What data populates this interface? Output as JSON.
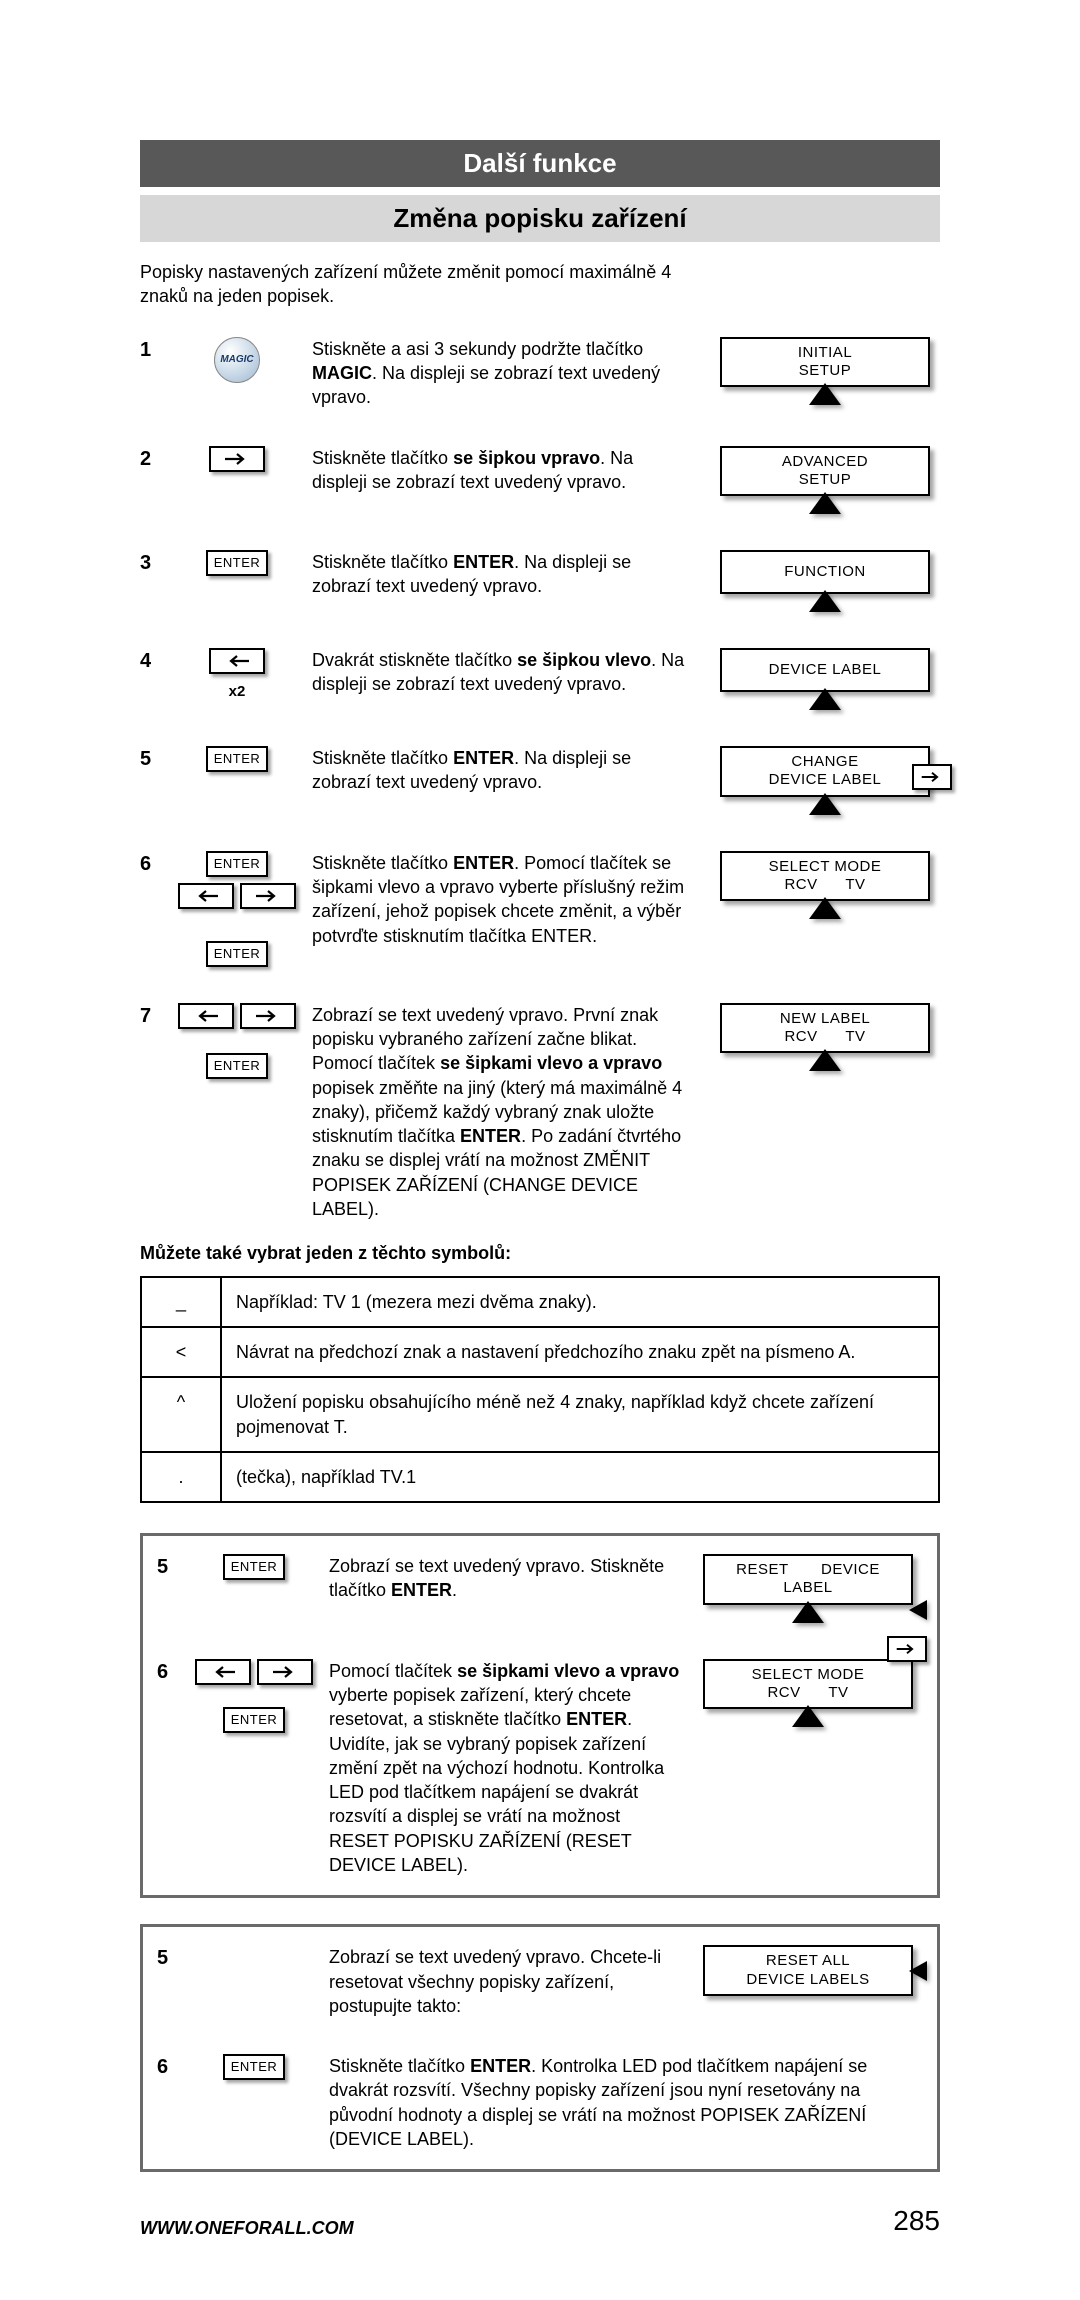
{
  "header": {
    "title1": "Další funkce",
    "title2": "Změna popisku zařízení"
  },
  "intro": "Popisky nastavených zařízení můžete změnit pomocí maximálně 4 znaků na jeden popisek.",
  "steps": {
    "s1": {
      "num": "1",
      "text_a": "Stiskněte a asi 3 sekundy podržte tlačítko ",
      "bold": "MAGIC",
      "text_b": ". Na displeji se zobrazí text uvedený vpravo.",
      "screen_l1": "INITIAL",
      "screen_l2": "SETUP"
    },
    "s2": {
      "num": "2",
      "text_a": "Stiskněte tlačítko ",
      "bold": "se šipkou vpravo",
      "text_b": ". Na displeji se zobrazí text uvedený vpravo.",
      "screen_l1": "ADVANCED",
      "screen_l2": "SETUP"
    },
    "s3": {
      "num": "3",
      "enter": "ENTER",
      "text_a": "Stiskněte tlačítko ",
      "bold": "ENTER",
      "text_b": ". Na displeji se zobrazí text uvedený vpravo.",
      "screen_l1": "FUNCTION"
    },
    "s4": {
      "num": "4",
      "sub": "x2",
      "text_a": "Dvakrát stiskněte tlačítko ",
      "bold": "se šipkou vlevo",
      "text_b": ". Na displeji se zobrazí text uvedený vpravo.",
      "screen_l1": "DEVICE LABEL"
    },
    "s5": {
      "num": "5",
      "enter": "ENTER",
      "text_a": "Stiskněte tlačítko ",
      "bold": "ENTER",
      "text_b": ". Na displeji se zobrazí text uvedený vpravo.",
      "screen_l1": "CHANGE",
      "screen_l2": "DEVICE LABEL"
    },
    "s6": {
      "num": "6",
      "enter": "ENTER",
      "text_a": "Stiskněte tlačítko ",
      "bold": "ENTER",
      "text_b": ". Pomocí tlačítek se šipkami vlevo a vpravo vyberte příslušný režim zařízení, jehož popisek chcete změnit, a výběr potvrďte stisknutím tlačítka ENTER.",
      "screen_l1": "SELECT MODE",
      "screen_l2": "RCV      TV"
    },
    "s7": {
      "num": "7",
      "enter": "ENTER",
      "text_a": "Zobrazí se text uvedený vpravo. První znak popisku vybraného zařízení začne blikat. Pomocí tlačítek ",
      "bold1": "se šipkami vlevo a vpravo",
      "text_b": " popisek změňte na jiný (který má maximálně 4 znaky), přičemž každý vybraný znak uložte stisknutím tlačítka ",
      "bold2": "ENTER",
      "text_c": ". Po zadání čtvrtého znaku se displej vrátí na možnost ZMĚNIT POPISEK ZAŘÍZENÍ (CHANGE DEVICE LABEL).",
      "screen_l1": "NEW LABEL",
      "screen_l2": "RCV      TV"
    }
  },
  "notice": "Můžete také vybrat jeden z těchto symbolů:",
  "symbols": [
    {
      "k": "_",
      "v": "Například: TV 1 (mezera mezi dvěma znaky)."
    },
    {
      "k": "<",
      "v": "Návrat na předchozí znak a nastavení předchozího znaku zpět na písmeno A."
    },
    {
      "k": "^",
      "v": "Uložení popisku obsahujícího méně než 4 znaky, například když chcete zařízení pojmenovat T."
    },
    {
      "k": ".",
      "v": "(tečka), například TV.1"
    }
  ],
  "box1": {
    "r1": {
      "num": "5",
      "enter": "ENTER",
      "text_a": "Zobrazí se text uvedený vpravo. Stiskněte tlačítko ",
      "bold": "ENTER",
      "text_b": ".",
      "screen_l1": "RESET       DEVICE",
      "screen_l2": "LABEL"
    },
    "r2": {
      "num": "6",
      "enter": "ENTER",
      "text_a": "Pomocí tlačítek ",
      "bold1": "se šipkami vlevo a vpravo",
      "text_b": " vyberte popisek zařízení, který chcete resetovat, a stiskněte tlačítko ",
      "bold2": "ENTER",
      "text_c": ". Uvidíte, jak se vybraný popisek zařízení změní zpět na výchozí hodnotu. Kontrolka LED pod tlačítkem napájení se dvakrát rozsvítí a displej se vrátí na možnost RESET POPISKU ZAŘÍZENÍ (RESET DEVICE LABEL).",
      "screen_l1": "SELECT MODE",
      "screen_l2": "RCV      TV"
    }
  },
  "box2": {
    "r1": {
      "num": "5",
      "text": "Zobrazí se text uvedený vpravo. Chcete-li resetovat všechny popisky zařízení, postupujte takto:",
      "screen_l1": "RESET ALL",
      "screen_l2": "DEVICE LABELS"
    },
    "r2": {
      "num": "6",
      "enter": "ENTER",
      "text_a": "Stiskněte tlačítko ",
      "bold": "ENTER",
      "text_b": ". Kontrolka LED pod tlačítkem napájení se dvakrát rozsvítí. Všechny popisky zařízení jsou nyní resetovány na původní hodnoty a displej se vrátí na možnost POPISEK ZAŘÍZENÍ (DEVICE LABEL)."
    }
  },
  "footer": {
    "url": "WWW.ONEFORALL.COM",
    "page": "285"
  }
}
